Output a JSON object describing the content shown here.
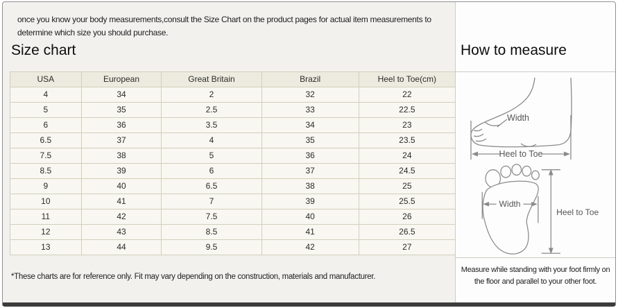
{
  "intro": {
    "text": "once you know your body measurements,consult the Size Chart on the product pages for actual item measurements to determine which size you should purchase."
  },
  "size_chart": {
    "title": "Size chart",
    "columns": [
      "USA",
      "European",
      "Great Britain",
      "Brazil",
      "Heel to Toe(cm)"
    ],
    "rows": [
      [
        "4",
        "34",
        "2",
        "32",
        "22"
      ],
      [
        "5",
        "35",
        "2.5",
        "33",
        "22.5"
      ],
      [
        "6",
        "36",
        "3.5",
        "34",
        "23"
      ],
      [
        "6.5",
        "37",
        "4",
        "35",
        "23.5"
      ],
      [
        "7.5",
        "38",
        "5",
        "36",
        "24"
      ],
      [
        "8.5",
        "39",
        "6",
        "37",
        "24.5"
      ],
      [
        "9",
        "40",
        "6.5",
        "38",
        "25"
      ],
      [
        "10",
        "41",
        "7",
        "39",
        "25.5"
      ],
      [
        "11",
        "42",
        "7.5",
        "40",
        "26"
      ],
      [
        "12",
        "43",
        "8.5",
        "41",
        "26.5"
      ],
      [
        "13",
        "44",
        "9.5",
        "42",
        "27"
      ]
    ],
    "footnote": "*These charts are for reference only. Fit may vary depending on the construction, materials and manufacturer."
  },
  "how_to_measure": {
    "title": "How to measure",
    "side_view": {
      "width_label": "Width",
      "heel_to_toe_label": "Heel to Toe"
    },
    "top_view": {
      "width_label": "Width",
      "heel_to_toe_label": "Heel to Toe"
    },
    "instruction": "Measure while standing with your foot firmly on the floor and parallel to your other foot."
  },
  "colors": {
    "page_bg": "#f2f1ee",
    "right_panel_bg": "#fdfdfd",
    "table_header_bg": "#edebdf",
    "table_row_bg": "#f8f7f1",
    "table_border": "#d2cfba",
    "frame_border": "#8f8f8f",
    "bottom_bar": "#3c3c3c",
    "diagram_stroke": "#8a8a8a"
  }
}
